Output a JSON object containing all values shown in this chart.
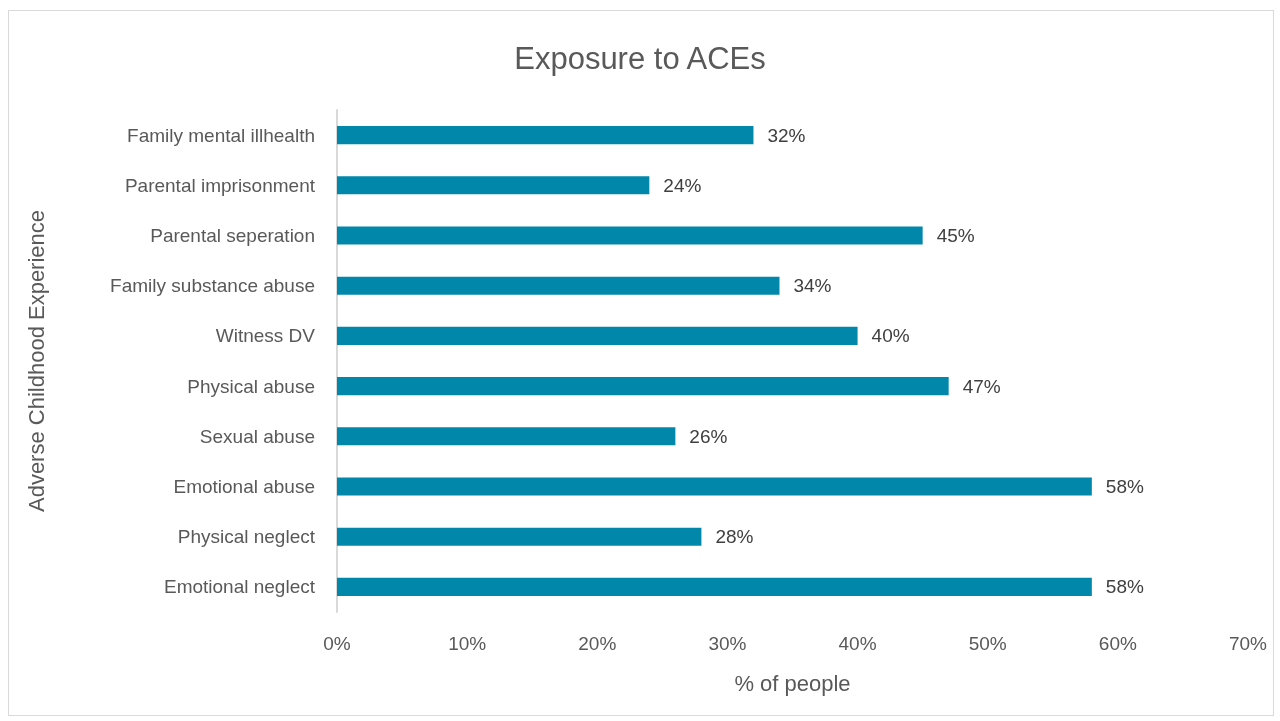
{
  "chart_data": {
    "type": "bar",
    "orientation": "horizontal",
    "title": "Exposure to ACEs",
    "xlabel": "% of people",
    "ylabel": "Adverse Childhood Experience",
    "categories": [
      "Family mental illhealth",
      "Parental imprisonment",
      "Parental seperation",
      "Family substance abuse",
      "Witness DV",
      "Physical abuse",
      "Sexual abuse",
      "Emotional abuse",
      "Physical neglect",
      "Emotional neglect"
    ],
    "values": [
      32,
      24,
      45,
      34,
      40,
      47,
      26,
      58,
      28,
      58
    ],
    "value_labels": [
      "32%",
      "24%",
      "45%",
      "34%",
      "40%",
      "47%",
      "26%",
      "58%",
      "28%",
      "58%"
    ],
    "color": "#0087aa",
    "xlim": [
      0,
      70
    ],
    "xticks": [
      {
        "value": 0,
        "label": "0%"
      },
      {
        "value": 10,
        "label": "10%"
      },
      {
        "value": 20,
        "label": "20%"
      },
      {
        "value": 30,
        "label": "30%"
      },
      {
        "value": 40,
        "label": "40%"
      },
      {
        "value": 50,
        "label": "50%"
      },
      {
        "value": 60,
        "label": "60%"
      },
      {
        "value": 70,
        "label": "70%"
      }
    ],
    "grid": false
  }
}
